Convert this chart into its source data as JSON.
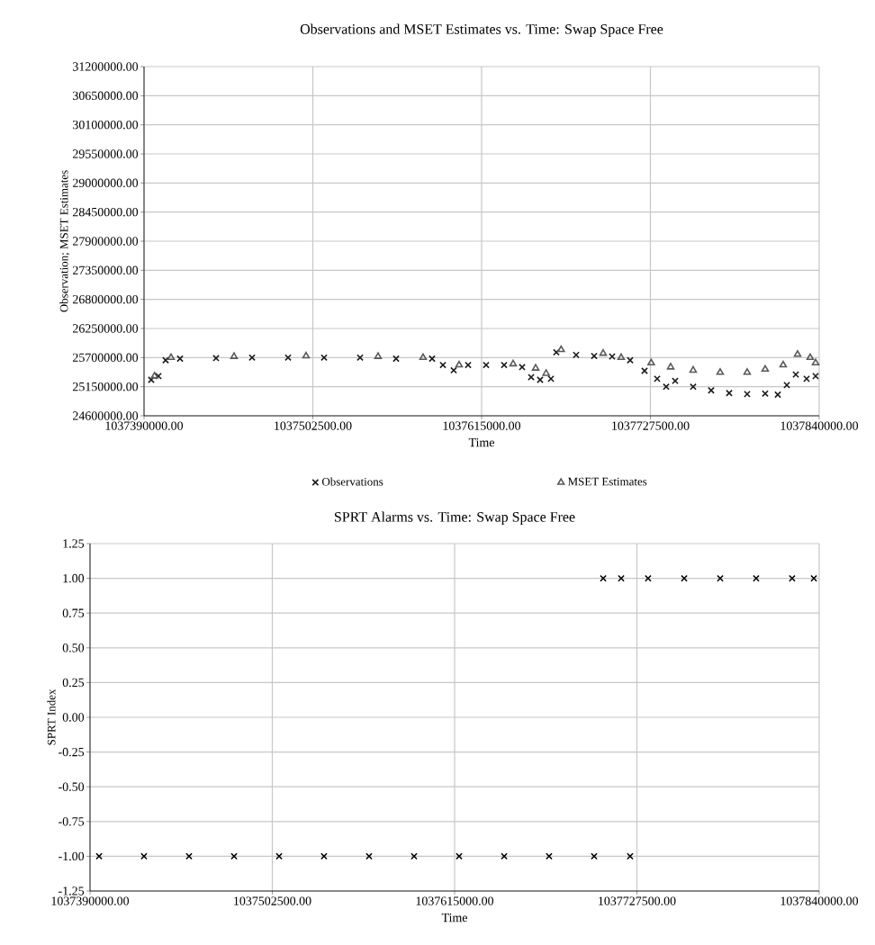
{
  "chart_data": [
    {
      "type": "scatter",
      "title": "Observations and MSET Estimates vs. Time: Swap Space Free",
      "xlabel": "Time",
      "ylabel": "Observation; MSET Estimates",
      "xlim": [
        1037390000,
        1037840000
      ],
      "xticks": [
        {
          "value": 1037390000,
          "label": "1037390000.00"
        },
        {
          "value": 1037502500,
          "label": "1037502500.00"
        },
        {
          "value": 1037615000,
          "label": "1037615000.00"
        },
        {
          "value": 1037727500,
          "label": "1037727500.00"
        },
        {
          "value": 1037840000,
          "label": "1037840000.00"
        }
      ],
      "ylim": [
        24600000,
        31200000
      ],
      "yticks": [
        {
          "value": 24600000,
          "label": "24600000.00"
        },
        {
          "value": 25150000,
          "label": "25150000.00"
        },
        {
          "value": 25700000,
          "label": "25700000.00"
        },
        {
          "value": 26250000,
          "label": "26250000.00"
        },
        {
          "value": 26800000,
          "label": "26800000.00"
        },
        {
          "value": 27350000,
          "label": "27350000.00"
        },
        {
          "value": 27900000,
          "label": "27900000.00"
        },
        {
          "value": 28450000,
          "label": "28450000.00"
        },
        {
          "value": 29000000,
          "label": "29000000.00"
        },
        {
          "value": 29550000,
          "label": "29550000.00"
        },
        {
          "value": 30100000,
          "label": "30100000.00"
        },
        {
          "value": 30650000,
          "label": "30650000.00"
        },
        {
          "value": 31200000,
          "label": "31200000.00"
        }
      ],
      "grid": true,
      "legend": "bottom",
      "series": [
        {
          "name": "Observations",
          "color": "#1a1a1a",
          "marker": "cross",
          "x": [
            1037394800,
            1037399600,
            1037404400,
            1037414000,
            1037438000,
            1037462000,
            1037486000,
            1037510000,
            1037534000,
            1037558000,
            1037582000,
            1037589200,
            1037596400,
            1037606000,
            1037618000,
            1037630000,
            1037642000,
            1037648000,
            1037654000,
            1037661200,
            1037664800,
            1037678000,
            1037690000,
            1037702000,
            1037714000,
            1037723600,
            1037732000,
            1037738000,
            1037744000,
            1037756000,
            1037768000,
            1037780000,
            1037792000,
            1037804000,
            1037812400,
            1037818400,
            1037824400,
            1037831600,
            1037837600
          ],
          "values": [
            25280000,
            25350000,
            25650000,
            25680000,
            25690000,
            25700000,
            25700000,
            25700000,
            25700000,
            25680000,
            25680000,
            25560000,
            25460000,
            25560000,
            25560000,
            25560000,
            25520000,
            25330000,
            25280000,
            25300000,
            25800000,
            25750000,
            25730000,
            25720000,
            25650000,
            25450000,
            25300000,
            25150000,
            25260000,
            25150000,
            25080000,
            25030000,
            25010000,
            25020000,
            25000000,
            25180000,
            25380000,
            25300000,
            25350000
          ]
        },
        {
          "name": "MSET Estimates",
          "color": "#595959",
          "marker": "triangle",
          "x": [
            1037397000,
            1037408000,
            1037450000,
            1037498000,
            1037546000,
            1037576000,
            1037600000,
            1037636000,
            1037651000,
            1037658000,
            1037668000,
            1037696000,
            1037708000,
            1037728000,
            1037741000,
            1037756000,
            1037774000,
            1037792000,
            1037804000,
            1037816000,
            1037825600,
            1037834000,
            1037837600
          ],
          "values": [
            25350000,
            25700000,
            25720000,
            25730000,
            25720000,
            25700000,
            25560000,
            25580000,
            25500000,
            25400000,
            25850000,
            25780000,
            25700000,
            25600000,
            25520000,
            25460000,
            25420000,
            25420000,
            25480000,
            25560000,
            25760000,
            25700000,
            25600000
          ]
        }
      ]
    },
    {
      "type": "scatter",
      "title": "SPRT Alarms vs. Time: Swap Space Free",
      "xlabel": "Time",
      "ylabel": "SPRT Index",
      "xlim": [
        1037390000,
        1037840000
      ],
      "xticks": [
        {
          "value": 1037390000,
          "label": "1037390000.00"
        },
        {
          "value": 1037502500,
          "label": "1037502500.00"
        },
        {
          "value": 1037615000,
          "label": "1037615000.00"
        },
        {
          "value": 1037727500,
          "label": "1037727500.00"
        },
        {
          "value": 1037840000,
          "label": "1037840000.00"
        }
      ],
      "ylim": [
        -1.25,
        1.25
      ],
      "yticks": [
        {
          "value": -1.25,
          "label": "-1.25"
        },
        {
          "value": -1,
          "label": "-1.00"
        },
        {
          "value": -0.75,
          "label": "-0.75"
        },
        {
          "value": -0.5,
          "label": "-0.50"
        },
        {
          "value": -0.25,
          "label": "-0.25"
        },
        {
          "value": 0,
          "label": "0.00"
        },
        {
          "value": 0.25,
          "label": "0.25"
        },
        {
          "value": 0.5,
          "label": "0.50"
        },
        {
          "value": 0.75,
          "label": "0.75"
        },
        {
          "value": 1,
          "label": "1.00"
        },
        {
          "value": 1.25,
          "label": "1.25"
        }
      ],
      "grid": true,
      "marker": "cross",
      "series": [
        {
          "color": "#000000",
          "x": [
            1037395600,
            1037423300,
            1037451100,
            1037478900,
            1037506700,
            1037534400,
            1037562200,
            1037590000,
            1037617800,
            1037645600,
            1037673300,
            1037701100,
            1037723300,
            1037706700,
            1037717800,
            1037734400,
            1037756700,
            1037778900,
            1037801100,
            1037823300,
            1037836700
          ],
          "values": [
            -1,
            -1,
            -1,
            -1,
            -1,
            -1,
            -1,
            -1,
            -1,
            -1,
            -1,
            -1,
            -1,
            1,
            1,
            1,
            1,
            1,
            1,
            1,
            1
          ]
        }
      ]
    }
  ]
}
